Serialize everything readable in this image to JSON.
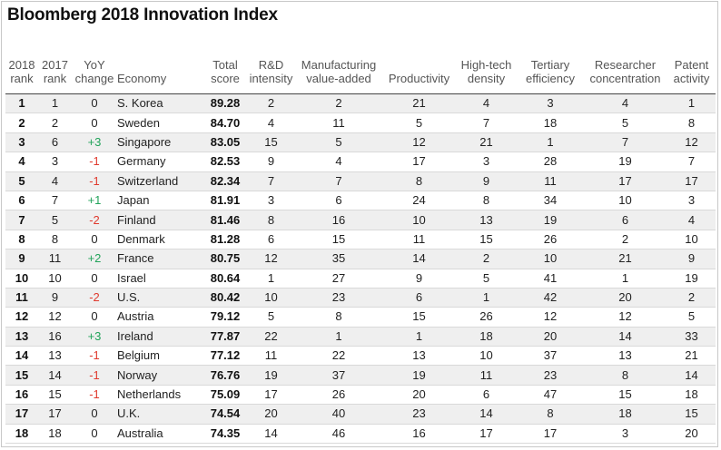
{
  "title": "Bloomberg 2018 Innovation Index",
  "colors": {
    "positive": "#22a35a",
    "negative": "#e03a2e",
    "stripe": "#efefef"
  },
  "chart_data": {
    "type": "table",
    "title": "Bloomberg 2018 Innovation Index",
    "columns": [
      [
        "2018",
        "rank"
      ],
      [
        "2017",
        "rank"
      ],
      [
        "YoY",
        "change"
      ],
      [
        "",
        "Economy"
      ],
      [
        "Total",
        "score"
      ],
      [
        "R&D",
        "intensity"
      ],
      [
        "Manufacturing",
        "value-added"
      ],
      [
        "",
        "Productivity"
      ],
      [
        "High-tech",
        "density"
      ],
      [
        "Tertiary",
        "efficiency"
      ],
      [
        "Researcher",
        "concentration"
      ],
      [
        "Patent",
        "activity"
      ]
    ],
    "rows": [
      [
        "1",
        "1",
        "0",
        "S. Korea",
        "89.28",
        "2",
        "2",
        "21",
        "4",
        "3",
        "4",
        "1"
      ],
      [
        "2",
        "2",
        "0",
        "Sweden",
        "84.70",
        "4",
        "11",
        "5",
        "7",
        "18",
        "5",
        "8"
      ],
      [
        "3",
        "6",
        "+3",
        "Singapore",
        "83.05",
        "15",
        "5",
        "12",
        "21",
        "1",
        "7",
        "12"
      ],
      [
        "4",
        "3",
        "-1",
        "Germany",
        "82.53",
        "9",
        "4",
        "17",
        "3",
        "28",
        "19",
        "7"
      ],
      [
        "5",
        "4",
        "-1",
        "Switzerland",
        "82.34",
        "7",
        "7",
        "8",
        "9",
        "11",
        "17",
        "17"
      ],
      [
        "6",
        "7",
        "+1",
        "Japan",
        "81.91",
        "3",
        "6",
        "24",
        "8",
        "34",
        "10",
        "3"
      ],
      [
        "7",
        "5",
        "-2",
        "Finland",
        "81.46",
        "8",
        "16",
        "10",
        "13",
        "19",
        "6",
        "4"
      ],
      [
        "8",
        "8",
        "0",
        "Denmark",
        "81.28",
        "6",
        "15",
        "11",
        "15",
        "26",
        "2",
        "10"
      ],
      [
        "9",
        "11",
        "+2",
        "France",
        "80.75",
        "12",
        "35",
        "14",
        "2",
        "10",
        "21",
        "9"
      ],
      [
        "10",
        "10",
        "0",
        "Israel",
        "80.64",
        "1",
        "27",
        "9",
        "5",
        "41",
        "1",
        "19"
      ],
      [
        "11",
        "9",
        "-2",
        "U.S.",
        "80.42",
        "10",
        "23",
        "6",
        "1",
        "42",
        "20",
        "2"
      ],
      [
        "12",
        "12",
        "0",
        "Austria",
        "79.12",
        "5",
        "8",
        "15",
        "26",
        "12",
        "12",
        "5"
      ],
      [
        "13",
        "16",
        "+3",
        "Ireland",
        "77.87",
        "22",
        "1",
        "1",
        "18",
        "20",
        "14",
        "33"
      ],
      [
        "14",
        "13",
        "-1",
        "Belgium",
        "77.12",
        "11",
        "22",
        "13",
        "10",
        "37",
        "13",
        "21"
      ],
      [
        "15",
        "14",
        "-1",
        "Norway",
        "76.76",
        "19",
        "37",
        "19",
        "11",
        "23",
        "8",
        "14"
      ],
      [
        "16",
        "15",
        "-1",
        "Netherlands",
        "75.09",
        "17",
        "26",
        "20",
        "6",
        "47",
        "15",
        "18"
      ],
      [
        "17",
        "17",
        "0",
        "U.K.",
        "74.54",
        "20",
        "40",
        "23",
        "14",
        "8",
        "18",
        "15"
      ],
      [
        "18",
        "18",
        "0",
        "Australia",
        "74.35",
        "14",
        "46",
        "16",
        "17",
        "17",
        "3",
        "20"
      ]
    ]
  }
}
